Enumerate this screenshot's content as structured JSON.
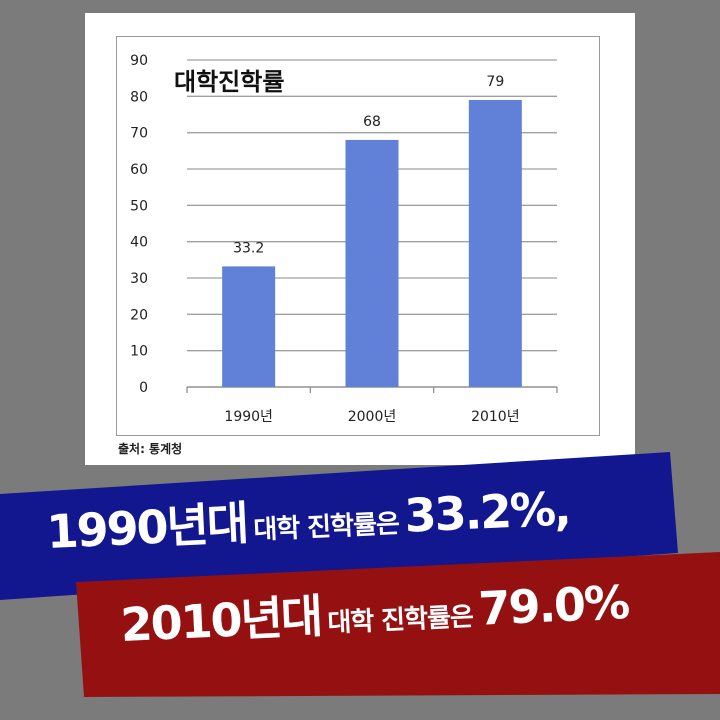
{
  "chart_data": {
    "type": "bar",
    "title": "대학진학률",
    "categories": [
      "1990년",
      "2000년",
      "2010년"
    ],
    "values": [
      33.2,
      68,
      79
    ],
    "data_labels": [
      "33.2",
      "68",
      "79"
    ],
    "ylim": [
      0,
      90
    ],
    "yticks": [
      0,
      10,
      20,
      30,
      40,
      50,
      60,
      70,
      80,
      90
    ],
    "grid": true,
    "bar_color": "#6181d8",
    "source": "출처: 통계청"
  },
  "banners": {
    "first": {
      "year": "1990년대",
      "middle": "대학 진학률은",
      "value": "33.2%,",
      "color": "#12168f"
    },
    "second": {
      "year": "2010년대",
      "middle": "대학 진학률은",
      "value": "79.0%",
      "color": "#951111"
    }
  }
}
